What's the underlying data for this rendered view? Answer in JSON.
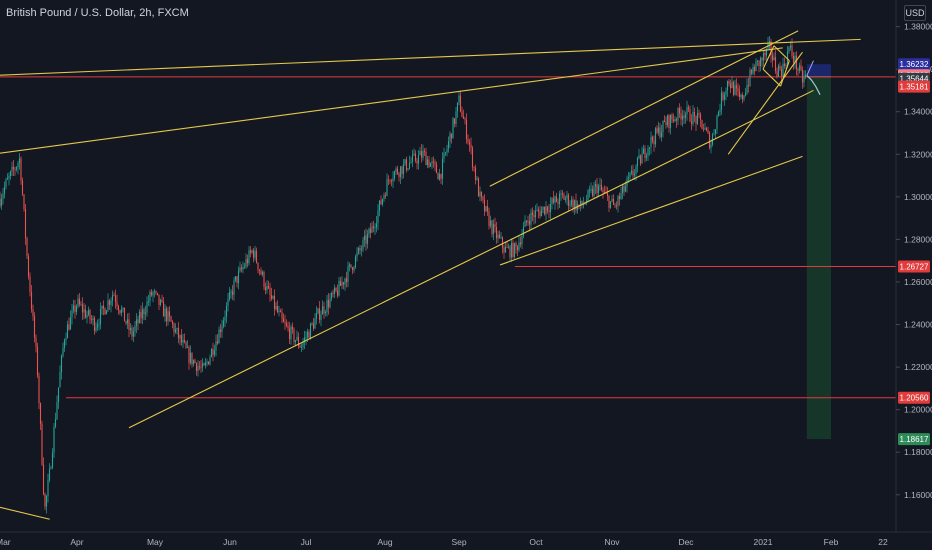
{
  "header": {
    "title": "British Pound / U.S. Dollar, 2h, FXCM",
    "currency": "USD"
  },
  "colors": {
    "background": "#131722",
    "up": "#26a69a",
    "down": "#ef5350",
    "trendline": "#e6c84a",
    "hline": "#e03c3c",
    "axis_text": "#b2b5be"
  },
  "chart_data": {
    "type": "candlestick",
    "title": "British Pound / U.S. Dollar, 2h, FXCM",
    "xlabel": "",
    "ylabel": "",
    "ylim": [
      1.1425,
      1.3925
    ],
    "grid": false,
    "x_ticks": [
      "Mar",
      "Apr",
      "May",
      "Jun",
      "Jul",
      "Aug",
      "Sep",
      "Oct",
      "Nov",
      "Dec",
      "2021",
      "Feb",
      "22"
    ],
    "y_ticks": [
      "1.38000",
      "1.36000",
      "1.34000",
      "1.32000",
      "1.30000",
      "1.28000",
      "1.26000",
      "1.24000",
      "1.22000",
      "1.20000",
      "1.18000",
      "1.16000"
    ],
    "price_labels": [
      {
        "text": "1.36232",
        "color": "#2a2e9e"
      },
      {
        "text": "1.35763",
        "color": "#f77c80"
      },
      {
        "text": "1.35644",
        "color": "#363a45"
      },
      {
        "text": "1.35181",
        "color": "#e03c3c"
      },
      {
        "text": "1.26727",
        "color": "#e03c3c"
      },
      {
        "text": "1.20560",
        "color": "#e03c3c"
      },
      {
        "text": "1.18617",
        "color": "#2e8b57"
      }
    ],
    "horizontal_levels": [
      1.3564,
      1.26727,
      1.2056
    ],
    "price_path": [
      [
        "Feb 26",
        1.29
      ],
      [
        "Mar 3",
        1.305
      ],
      [
        "Mar 9",
        1.318
      ],
      [
        "Mar 12",
        1.27
      ],
      [
        "Mar 16",
        1.22
      ],
      [
        "Mar 19",
        1.1525
      ],
      [
        "Mar 21",
        1.17
      ],
      [
        "Mar 24",
        1.205
      ],
      [
        "Mar 27",
        1.235
      ],
      [
        "Apr 1",
        1.25
      ],
      [
        "Apr 8",
        1.24
      ],
      [
        "Apr 15",
        1.255
      ],
      [
        "Apr 22",
        1.235
      ],
      [
        "Apr 30",
        1.255
      ],
      [
        "May 8",
        1.24
      ],
      [
        "May 15",
        1.225
      ],
      [
        "May 21",
        1.218
      ],
      [
        "May 27",
        1.235
      ],
      [
        "Jun 3",
        1.26
      ],
      [
        "Jun 10",
        1.275
      ],
      [
        "Jun 16",
        1.255
      ],
      [
        "Jun 22",
        1.24
      ],
      [
        "Jun 29",
        1.23
      ],
      [
        "Jul 6",
        1.245
      ],
      [
        "Jul 13",
        1.255
      ],
      [
        "Jul 20",
        1.27
      ],
      [
        "Jul 27",
        1.285
      ],
      [
        "Aug 3",
        1.31
      ],
      [
        "Aug 10",
        1.315
      ],
      [
        "Aug 17",
        1.32
      ],
      [
        "Aug 24",
        1.31
      ],
      [
        "Aug 31",
        1.34
      ],
      [
        "Sep 1",
        1.345
      ],
      [
        "Sep 5",
        1.325
      ],
      [
        "Sep 9",
        1.3
      ],
      [
        "Sep 14",
        1.285
      ],
      [
        "Sep 19",
        1.275
      ],
      [
        "Sep 23",
        1.275
      ],
      [
        "Sep 28",
        1.29
      ],
      [
        "Oct 5",
        1.295
      ],
      [
        "Oct 12",
        1.3
      ],
      [
        "Oct 19",
        1.295
      ],
      [
        "Oct 26",
        1.305
      ],
      [
        "Nov 2",
        1.295
      ],
      [
        "Nov 9",
        1.31
      ],
      [
        "Nov 16",
        1.325
      ],
      [
        "Nov 23",
        1.335
      ],
      [
        "Nov 30",
        1.34
      ],
      [
        "Dec 7",
        1.335
      ],
      [
        "Dec 11",
        1.325
      ],
      [
        "Dec 15",
        1.345
      ],
      [
        "Dec 18",
        1.355
      ],
      [
        "Dec 23",
        1.345
      ],
      [
        "Dec 28",
        1.36
      ],
      [
        "Jan 1",
        1.365
      ],
      [
        "Jan 4",
        1.37
      ],
      [
        "Jan 7",
        1.36
      ],
      [
        "Jan 10",
        1.36
      ],
      [
        "Jan 13",
        1.37
      ],
      [
        "Jan 15",
        1.365
      ],
      [
        "Jan 17",
        1.36
      ],
      [
        "Jan 19",
        1.355
      ],
      [
        "Jan 21",
        1.357
      ]
    ],
    "projection_path": [
      [
        "Jan 21",
        1.357
      ],
      [
        "Jan 23",
        1.355
      ],
      [
        "Jan 25",
        1.352
      ],
      [
        "Jan 27",
        1.348
      ]
    ],
    "position_tool": {
      "type": "short",
      "start": "Jan 21",
      "end": "Feb 1",
      "stop": 1.36232,
      "entry": 1.35644,
      "target": 1.18617
    },
    "trendlines": [
      {
        "from": [
          "Feb 26",
          1.32
        ],
        "to": [
          "Jan 10",
          1.37
        ]
      },
      {
        "from": [
          "Feb 26",
          1.357
        ],
        "to": [
          "Feb 13",
          1.374
        ]
      },
      {
        "from": [
          "Apr 21",
          1.1915
        ],
        "to": [
          "Jan 24",
          1.35
        ]
      },
      {
        "from": [
          "Sep 17",
          1.268
        ],
        "to": [
          "Jan 19",
          1.319
        ]
      },
      {
        "from": [
          "Sep 13",
          1.305
        ],
        "to": [
          "Jan 17",
          1.378
        ]
      },
      {
        "from": [
          "Feb 26",
          1.155
        ],
        "to": [
          "Mar 21",
          1.1485
        ]
      },
      {
        "from": [
          "Dec 18",
          1.32
        ],
        "to": [
          "Jan 19",
          1.368
        ]
      },
      {
        "from": [
          "Jan 1",
          1.36
        ],
        "to": [
          "Jan 6",
          1.371
        ]
      },
      {
        "from": [
          "Jan 6",
          1.371
        ],
        "to": [
          "Jan 13",
          1.364
        ]
      },
      {
        "from": [
          "Jan 1",
          1.36
        ],
        "to": [
          "Jan 9",
          1.352
        ]
      },
      {
        "from": [
          "Jan 9",
          1.352
        ],
        "to": [
          "Jan 13",
          1.364
        ]
      }
    ]
  }
}
